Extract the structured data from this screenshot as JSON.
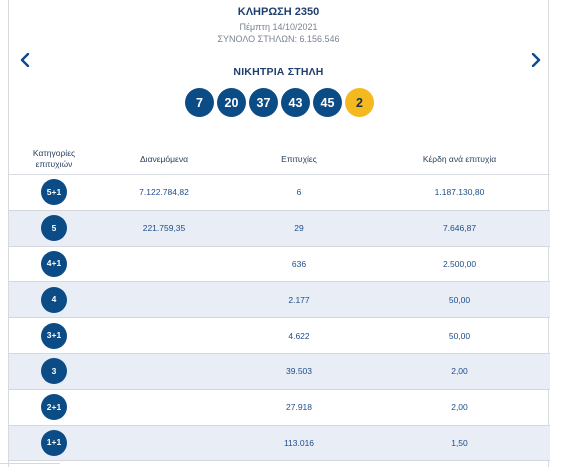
{
  "draw": {
    "title": "ΚΛΗΡΩΣΗ 2350",
    "date": "Πέμπτη 14/10/2021",
    "total_columns": "ΣΥΝΟΛΟ ΣΤΗΛΩΝ: 6.156.546"
  },
  "nav": {
    "prev_icon": "chevron-left-icon",
    "next_icon": "chevron-right-icon"
  },
  "winning": {
    "title": "ΝΙΚΗΤΡΙΑ ΣΤΗΛΗ",
    "numbers": [
      "7",
      "20",
      "37",
      "43",
      "45"
    ],
    "bonus": "2"
  },
  "colors": {
    "ball": "#0b4b86",
    "bonus": "#f4b91f",
    "alt_row": "#e9edf5"
  },
  "table": {
    "headers": {
      "category_line1": "Κατηγορίες",
      "category_line2": "επιτυχιών",
      "distributed": "Διανεμόμενα",
      "winners": "Επιτυχίες",
      "prize": "Κέρδη ανά επιτυχία"
    },
    "rows": [
      {
        "category": "5+1",
        "distributed": "7.122.784,82",
        "winners": "6",
        "prize": "1.187.130,80"
      },
      {
        "category": "5",
        "distributed": "221.759,35",
        "winners": "29",
        "prize": "7.646,87"
      },
      {
        "category": "4+1",
        "distributed": "",
        "winners": "636",
        "prize": "2.500,00"
      },
      {
        "category": "4",
        "distributed": "",
        "winners": "2.177",
        "prize": "50,00"
      },
      {
        "category": "3+1",
        "distributed": "",
        "winners": "4.622",
        "prize": "50,00"
      },
      {
        "category": "3",
        "distributed": "",
        "winners": "39.503",
        "prize": "2,00"
      },
      {
        "category": "2+1",
        "distributed": "",
        "winners": "27.918",
        "prize": "2,00"
      },
      {
        "category": "1+1",
        "distributed": "",
        "winners": "113.016",
        "prize": "1,50"
      }
    ]
  }
}
